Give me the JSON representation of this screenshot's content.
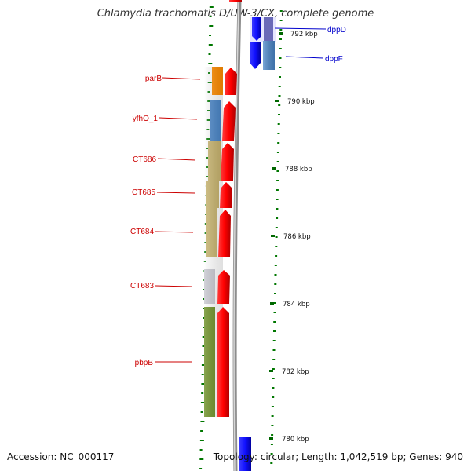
{
  "title": "Chlamydia trachomatis D/UW-3/CX, complete genome",
  "footer": {
    "accession_label": "Accession:",
    "accession": "NC_000117",
    "topology_label": "Topology:",
    "topology": "circular",
    "length_label": "Length:",
    "length": "1,042,519 bp",
    "genes_label": "Genes:",
    "genes": "940"
  },
  "scale_labels": [
    "792 kbp",
    "790 kbp",
    "788 kbp",
    "786 kbp",
    "784 kbp",
    "782 kbp",
    "780 kbp"
  ],
  "genes": [
    {
      "name": "dppD",
      "side": "right",
      "strand_color": "#1a1aff",
      "cog_color": "#5f7fbf"
    },
    {
      "name": "dppF",
      "side": "right",
      "strand_color": "#1a1aff",
      "cog_color": "#4a86c8"
    },
    {
      "name": "parB",
      "side": "left",
      "strand_color": "#ff0000",
      "cog_color": "#ff8c00"
    },
    {
      "name": "yfhO_1",
      "side": "left",
      "strand_color": "#ff0000",
      "cog_color": "#4a86c8"
    },
    {
      "name": "CT686",
      "side": "left",
      "strand_color": "#ff0000",
      "cog_color": "#c8b46e"
    },
    {
      "name": "CT685",
      "side": "left",
      "strand_color": "#ff0000",
      "cog_color": "#c8b46e"
    },
    {
      "name": "CT684",
      "side": "left",
      "strand_color": "#ff0000",
      "cog_color": "#c8b46e"
    },
    {
      "name": "CT683",
      "side": "left",
      "strand_color": "#ff0000",
      "cog_color": "#c8c8d0"
    },
    {
      "name": "pbpB",
      "side": "left",
      "strand_color": "#ff0000",
      "cog_color": "#6b8e23"
    }
  ],
  "colors": {
    "forward_strand": "#ff0000",
    "reverse_strand": "#1a1aff",
    "left_label": "#cc0000",
    "right_label": "#0000cc",
    "gc_ticks": "#007700",
    "backbone": "#999999"
  }
}
